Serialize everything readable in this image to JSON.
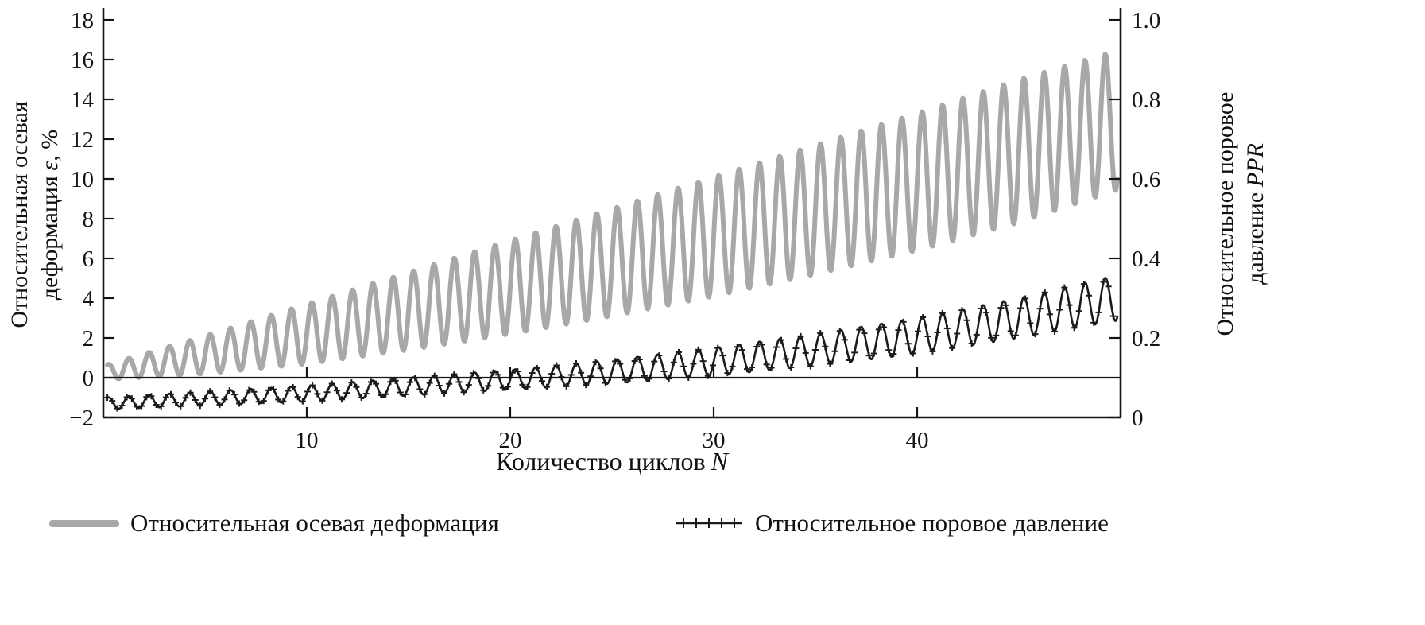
{
  "chart_data": {
    "type": "line",
    "title": "",
    "xlabel": {
      "text": "Количество циклов",
      "var": "N"
    },
    "ylabel_left": {
      "line1": "Относительная осевая",
      "line2_pre": "деформация",
      "line2_var": "ε",
      "line2_post": ", %"
    },
    "ylabel_right": {
      "line1": "Относительное поровое",
      "line2_pre": "давление",
      "line2_var": "PPR"
    },
    "x_range": [
      0,
      50
    ],
    "x_tick_values": [
      10,
      20,
      30,
      40
    ],
    "x_tick_labels": [
      "10",
      "20",
      "30",
      "40"
    ],
    "y_left_range": [
      -2,
      18
    ],
    "y_left_tick_values": [
      18,
      16,
      14,
      12,
      10,
      8,
      6,
      4,
      2,
      0,
      -2
    ],
    "y_left_tick_labels": [
      "18",
      "16",
      "14",
      "12",
      "10",
      "8",
      "6",
      "4",
      "2",
      "0",
      "−2"
    ],
    "y_right_range": [
      0,
      1.0
    ],
    "y_right_tick_values": [
      1.0,
      0.8,
      0.6,
      0.4,
      0.2,
      0
    ],
    "y_right_tick_labels": [
      "1.0",
      "0.8",
      "0.6",
      "0.4",
      "0.2",
      "0"
    ],
    "grid": false,
    "zero_line_left": 0,
    "legend_position": "bottom",
    "series": [
      {
        "name": "Относительная осевая деформация",
        "axis": "left",
        "unit": "%",
        "color": "#a8a8a8",
        "stroke_width": 6,
        "style": "oscillating",
        "oscillations_per_cycle": 1,
        "N_start": 0.2,
        "N_end": 49.85,
        "envelope_N": [
          0,
          5,
          10,
          15,
          20,
          25,
          30,
          35,
          40,
          45,
          50
        ],
        "envelope_upper": [
          0.6,
          2.1,
          3.7,
          5.3,
          6.9,
          8.5,
          10.1,
          11.7,
          13.3,
          15.0,
          16.5
        ],
        "envelope_lower": [
          -0.1,
          0.2,
          0.7,
          1.4,
          2.2,
          3.1,
          4.1,
          5.2,
          6.4,
          7.8,
          9.5
        ]
      },
      {
        "name": "Относительное поровое давление",
        "axis": "right",
        "unit": "PPR",
        "color": "#1b1b1b",
        "stroke_width": 2.6,
        "marker": "plus",
        "style": "oscillating",
        "oscillations_per_cycle": 1,
        "N_start": 0.2,
        "N_end": 49.85,
        "envelope_N": [
          0,
          5,
          10,
          15,
          20,
          25,
          30,
          35,
          40,
          45,
          50
        ],
        "envelope_upper": [
          0.05,
          0.065,
          0.08,
          0.1,
          0.12,
          0.145,
          0.175,
          0.21,
          0.25,
          0.3,
          0.36
        ],
        "envelope_lower": [
          0.02,
          0.03,
          0.04,
          0.055,
          0.07,
          0.085,
          0.105,
          0.13,
          0.16,
          0.2,
          0.245
        ]
      }
    ]
  },
  "legend": {
    "items": [
      {
        "label": "Относительная осевая деформация",
        "swatch": "thick-gray-line"
      },
      {
        "label": "Относительное поровое давление",
        "swatch": "black-line-plus-markers"
      }
    ]
  }
}
